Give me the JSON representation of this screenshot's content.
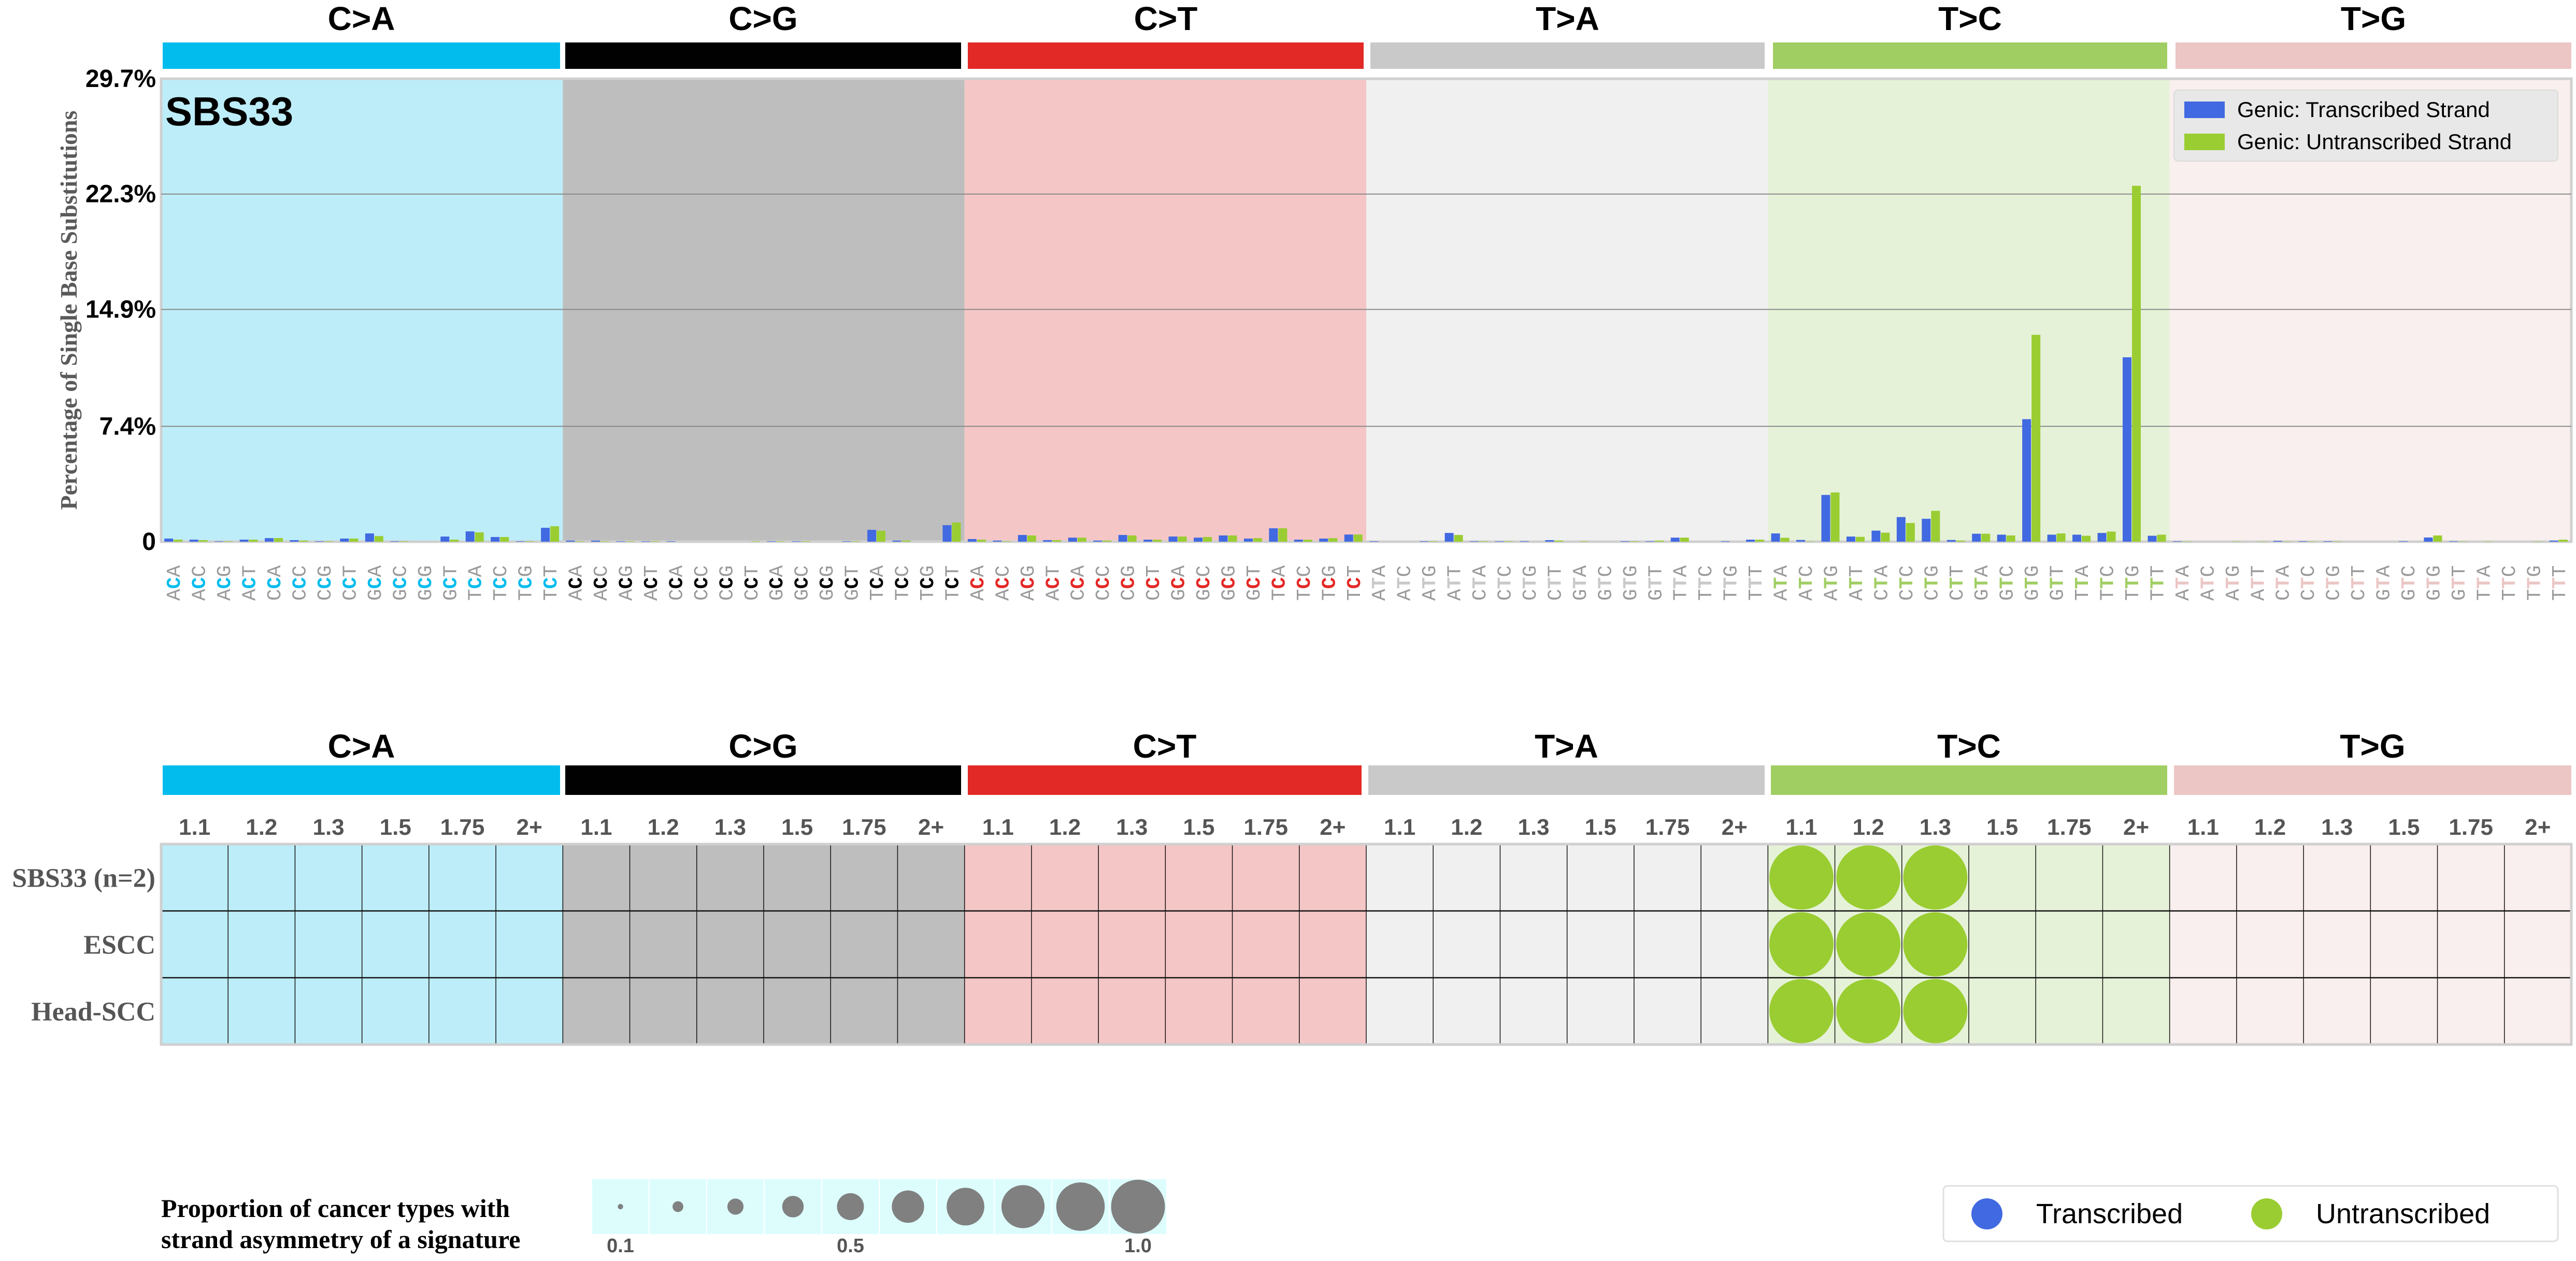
{
  "chart_data": {
    "type": "bar",
    "title": "SBS33",
    "ylabel": "Percentage of Single Base Substitutions",
    "ylim": [
      0,
      29.7
    ],
    "yticks": [
      "0",
      "7.4%",
      "14.9%",
      "22.3%",
      "29.7%"
    ],
    "ytick_values": [
      0,
      7.4,
      14.9,
      22.3,
      29.7
    ],
    "grid": true,
    "legend": {
      "placement": "top-right",
      "entries": [
        "Genic: Transcribed Strand",
        "Genic: Untranscribed Strand"
      ]
    },
    "series_colors": {
      "transcribed": "#4169E1",
      "untranscribed": "#9ACD32"
    },
    "mutation_types": [
      {
        "label": "C>A",
        "ref": "C",
        "band": "#03BCEE",
        "bg": "#BDEDF8",
        "mid": "#03BCEE",
        "contexts": [
          "ACA",
          "ACC",
          "ACG",
          "ACT",
          "CCA",
          "CCC",
          "CCG",
          "CCT",
          "GCA",
          "GCC",
          "GCG",
          "GCT",
          "TCA",
          "TCC",
          "TCG",
          "TCT"
        ],
        "transcribed": [
          0.2,
          0.13,
          0.03,
          0.13,
          0.23,
          0.1,
          0.03,
          0.2,
          0.53,
          0.03,
          0,
          0.33,
          0.66,
          0.3,
          0.03,
          0.89
        ],
        "untranscribed": [
          0.13,
          0.1,
          0.03,
          0.13,
          0.23,
          0.07,
          0.03,
          0.2,
          0.36,
          0.03,
          0,
          0.13,
          0.6,
          0.3,
          0.03,
          0.99
        ]
      },
      {
        "label": "C>G",
        "ref": "C",
        "band": "#010101",
        "bg": "#BEBEBE",
        "mid": "#010101",
        "contexts": [
          "ACA",
          "ACC",
          "ACG",
          "ACT",
          "CCA",
          "CCC",
          "CCG",
          "CCT",
          "GCA",
          "GCC",
          "GCG",
          "GCT",
          "TCA",
          "TCC",
          "TCG",
          "TCT"
        ],
        "transcribed": [
          0.07,
          0.07,
          0.03,
          0.03,
          0.03,
          0,
          0,
          0,
          0.03,
          0.03,
          0,
          0.03,
          0.76,
          0.07,
          0,
          1.06
        ],
        "untranscribed": [
          0.03,
          0.03,
          0.03,
          0.03,
          0,
          0,
          0,
          0.03,
          0.03,
          0.03,
          0,
          0.03,
          0.7,
          0.07,
          0,
          1.23
        ]
      },
      {
        "label": "C>T",
        "ref": "C",
        "band": "#E32926",
        "bg": "#F5C6C6",
        "mid": "#E32926",
        "contexts": [
          "ACA",
          "ACC",
          "ACG",
          "ACT",
          "CCA",
          "CCC",
          "CCG",
          "CCT",
          "GCA",
          "GCC",
          "GCG",
          "GCT",
          "TCA",
          "TCC",
          "TCG",
          "TCT"
        ],
        "transcribed": [
          0.17,
          0.07,
          0.43,
          0.1,
          0.26,
          0.07,
          0.43,
          0.13,
          0.33,
          0.26,
          0.4,
          0.2,
          0.86,
          0.13,
          0.2,
          0.46
        ],
        "untranscribed": [
          0.13,
          0.03,
          0.4,
          0.1,
          0.26,
          0.07,
          0.4,
          0.13,
          0.33,
          0.3,
          0.4,
          0.23,
          0.86,
          0.13,
          0.23,
          0.46
        ]
      },
      {
        "label": "T>A",
        "ref": "T",
        "band": "#CAC9C9",
        "bg": "#F0F0F0",
        "mid": "#CAC9C9",
        "contexts": [
          "ATA",
          "ATC",
          "ATG",
          "ATT",
          "CTA",
          "CTC",
          "CTG",
          "CTT",
          "GTA",
          "GTC",
          "GTG",
          "GTT",
          "TTA",
          "TTC",
          "TTG",
          "TTT"
        ],
        "transcribed": [
          0.03,
          0,
          0.03,
          0.56,
          0.03,
          0.03,
          0.03,
          0.1,
          0,
          0,
          0.03,
          0.03,
          0.26,
          0,
          0.03,
          0.13
        ],
        "untranscribed": [
          0,
          0,
          0.03,
          0.43,
          0.03,
          0.03,
          0,
          0.07,
          0.03,
          0,
          0.03,
          0.07,
          0.26,
          0,
          0,
          0.13
        ]
      },
      {
        "label": "T>C",
        "ref": "T",
        "band": "#A1CE63",
        "bg": "#E6F2D8",
        "mid": "#A1CE63",
        "contexts": [
          "ATA",
          "ATC",
          "ATG",
          "ATT",
          "CTA",
          "CTC",
          "CTG",
          "CTT",
          "GTA",
          "GTC",
          "GTG",
          "GTT",
          "TTA",
          "TTC",
          "TTG",
          "TTT"
        ],
        "transcribed": [
          0.53,
          0.11,
          3.0,
          0.33,
          0.71,
          1.58,
          1.47,
          0.11,
          0.51,
          0.45,
          7.86,
          0.45,
          0.45,
          0.56,
          11.83,
          0.38
        ],
        "untranscribed": [
          0.25,
          0.02,
          3.16,
          0.31,
          0.58,
          1.2,
          1.98,
          0.07,
          0.51,
          0.4,
          13.27,
          0.53,
          0.38,
          0.65,
          22.83,
          0.45
        ]
      },
      {
        "label": "T>G",
        "ref": "T",
        "band": "#EBC6C4",
        "bg": "#F9EFEE",
        "mid": "#EBC6C4",
        "contexts": [
          "ATA",
          "ATC",
          "ATG",
          "ATT",
          "CTA",
          "CTC",
          "CTG",
          "CTT",
          "GTA",
          "GTC",
          "GTG",
          "GTT",
          "TTA",
          "TTC",
          "TTG",
          "TTT"
        ],
        "transcribed": [
          0.03,
          0,
          0,
          0,
          0.05,
          0.03,
          0.03,
          0,
          0,
          0.03,
          0.27,
          0.03,
          0,
          0,
          0,
          0.07
        ],
        "untranscribed": [
          0.02,
          0,
          0.02,
          0.02,
          0.02,
          0.02,
          0.02,
          0,
          0,
          0,
          0.4,
          0.02,
          0.02,
          0,
          0.02,
          0.13
        ]
      }
    ]
  },
  "asymmetry_grid": {
    "thresholds": [
      "1.1",
      "1.2",
      "1.3",
      "1.5",
      "1.75",
      "2+"
    ],
    "rows": [
      "SBS33 (n=2)",
      "ESCC",
      "Head-SCC"
    ],
    "cells": [
      {
        "type": "T>C",
        "threshold": "1.1",
        "row": 0,
        "strand": "untranscribed",
        "proportion": 1.0
      },
      {
        "type": "T>C",
        "threshold": "1.2",
        "row": 0,
        "strand": "untranscribed",
        "proportion": 1.0
      },
      {
        "type": "T>C",
        "threshold": "1.3",
        "row": 0,
        "strand": "untranscribed",
        "proportion": 1.0
      },
      {
        "type": "T>C",
        "threshold": "1.1",
        "row": 1,
        "strand": "untranscribed",
        "proportion": 1.0
      },
      {
        "type": "T>C",
        "threshold": "1.2",
        "row": 1,
        "strand": "untranscribed",
        "proportion": 1.0
      },
      {
        "type": "T>C",
        "threshold": "1.3",
        "row": 1,
        "strand": "untranscribed",
        "proportion": 1.0
      },
      {
        "type": "T>C",
        "threshold": "1.1",
        "row": 2,
        "strand": "untranscribed",
        "proportion": 1.0
      },
      {
        "type": "T>C",
        "threshold": "1.2",
        "row": 2,
        "strand": "untranscribed",
        "proportion": 1.0
      },
      {
        "type": "T>C",
        "threshold": "1.3",
        "row": 2,
        "strand": "untranscribed",
        "proportion": 1.0
      }
    ]
  },
  "size_legend": {
    "title_line1": "Proportion of cancer types with",
    "title_line2": "strand asymmetry of a signature",
    "values": [
      0.1,
      0.2,
      0.3,
      0.4,
      0.5,
      0.6,
      0.7,
      0.8,
      0.9,
      1.0
    ],
    "tick_labels": [
      {
        "value": 0.1,
        "label": "0.1"
      },
      {
        "value": 0.5,
        "label": "0.5"
      },
      {
        "value": 1.0,
        "label": "1.0"
      }
    ],
    "dot_color": "#808080",
    "bg": "#DDFDFD"
  },
  "strand_legend": [
    {
      "label": "Transcribed",
      "color": "#4169E1"
    },
    {
      "label": "Untranscribed",
      "color": "#9ACD32"
    }
  ]
}
